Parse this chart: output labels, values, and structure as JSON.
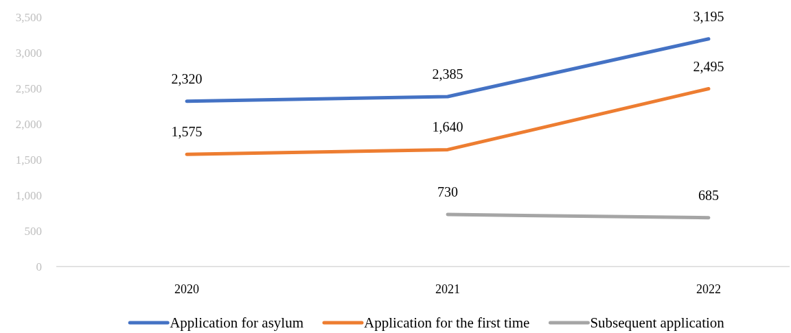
{
  "chart_data": {
    "type": "line",
    "categories": [
      "2020",
      "2021",
      "2022"
    ],
    "series": [
      {
        "name": "Application for asylum",
        "color": "#4472c4",
        "values": [
          2320,
          2385,
          3195
        ],
        "value_labels": [
          "2,320",
          "2,385",
          "3,195"
        ]
      },
      {
        "name": "Application for the first time",
        "color": "#ed7d31",
        "values": [
          1575,
          1640,
          2495
        ],
        "value_labels": [
          "1,575",
          "1,640",
          "2,495"
        ]
      },
      {
        "name": "Subsequent application",
        "color": "#a5a5a5",
        "values": [
          null,
          730,
          685
        ],
        "value_labels": [
          null,
          "730",
          "685"
        ]
      }
    ],
    "ylim": [
      0,
      3500
    ],
    "yticks": [
      0,
      500,
      {
        "value": 1000,
        "label": "1,000"
      },
      {
        "value": 1500,
        "label": "1,500"
      },
      {
        "value": 2000,
        "label": "2,000"
      },
      {
        "value": 2500,
        "label": "2,500"
      },
      {
        "value": 3000,
        "label": "3,000"
      },
      {
        "value": 3500,
        "label": "3,500"
      }
    ],
    "legend": "bottom"
  }
}
